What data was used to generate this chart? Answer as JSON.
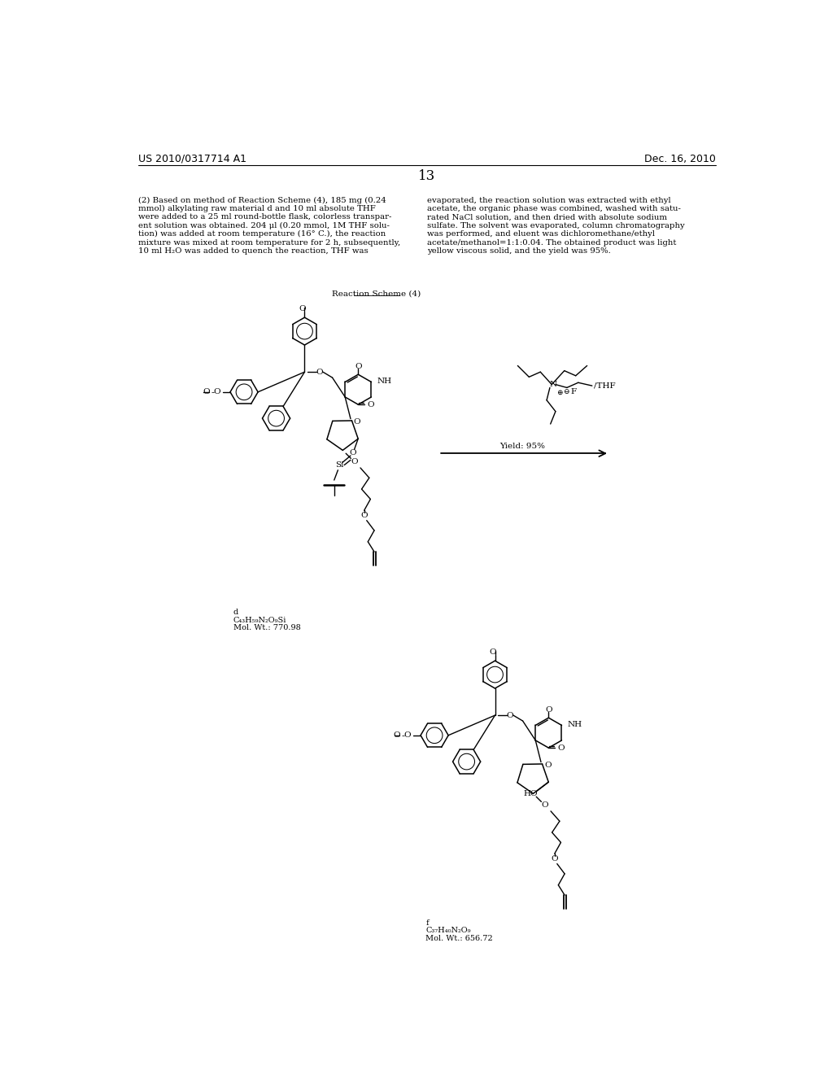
{
  "page_header_left": "US 2010/0317714 A1",
  "page_header_right": "Dec. 16, 2010",
  "page_number": "13",
  "para_left_lines": [
    "(2) Based on method of Reaction Scheme (4), 185 mg (0.24",
    "mmol) alkylating raw material d and 10 ml absolute THF",
    "were added to a 25 ml round-bottle flask, colorless transpar-",
    "ent solution was obtained. 204 μl (0.20 mmol, 1M THF solu-",
    "tion) was added at room temperature (16° C.), the reaction",
    "mixture was mixed at room temperature for 2 h, subsequently,",
    "10 ml H₂O was added to quench the reaction, THF was"
  ],
  "para_right_lines": [
    "evaporated, the reaction solution was extracted with ethyl",
    "acetate, the organic phase was combined, washed with satu-",
    "rated NaCl solution, and then dried with absolute sodium",
    "sulfate. The solvent was evaporated, column chromatography",
    "was performed, and eluent was dichloromethane/ethyl",
    "acetate/methanol=1:1:0.04. The obtained product was light",
    "yellow viscous solid, and the yield was 95%."
  ],
  "scheme_label": "Reaction Scheme (4)",
  "yield_label": "Yield: 95%",
  "mol_label_top": "d",
  "mol_formula_top_line1": "C₄₃H₅₉N₂O₉Si",
  "mol_formula_top_line2": "Mol. Wt.: 770.98",
  "mol_label_bottom": "f",
  "mol_formula_bottom_line1": "C₃₇H₄₀N₂O₉",
  "mol_formula_bottom_line2": "Mol. Wt.: 656.72"
}
